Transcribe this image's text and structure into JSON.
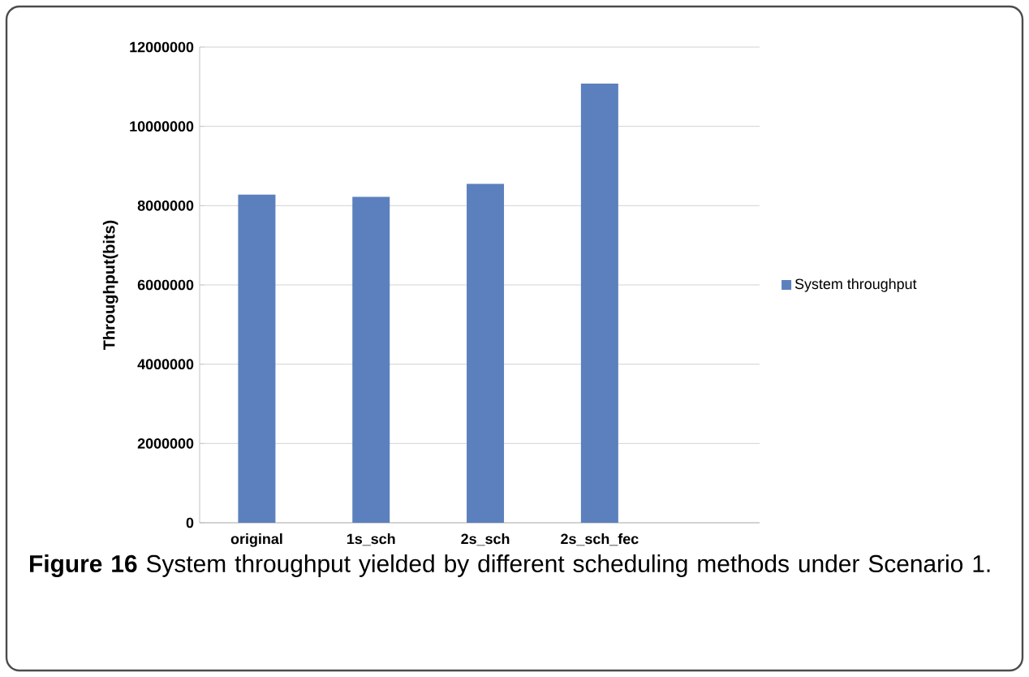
{
  "chart_data": {
    "type": "bar",
    "ylabel": "Throughput(bits)",
    "categories": [
      "original",
      "1s_sch",
      "2s_sch",
      "2s_sch_fec",
      null
    ],
    "series": [
      {
        "name": "System throughput",
        "color": "#5b80bd",
        "values": [
          8280000,
          8220000,
          8550000,
          11080000,
          null
        ]
      }
    ],
    "ylim": [
      0,
      12000000
    ],
    "yticks": [
      0,
      2000000,
      4000000,
      6000000,
      8000000,
      10000000,
      12000000
    ],
    "grid": "y",
    "legend": "right",
    "annotations": [
      "**Figure 16** System throughput yielded by different scheduling methods under Scenario 1."
    ]
  }
}
